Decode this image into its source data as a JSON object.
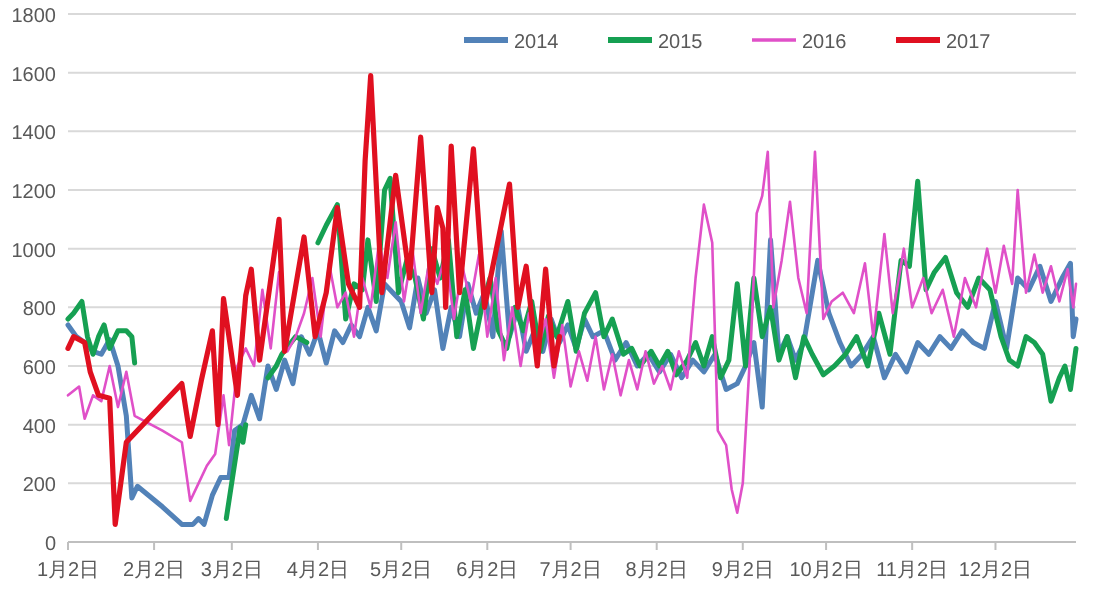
{
  "chart_data": {
    "type": "line",
    "xlim": [
      "--01-02",
      "--12-31"
    ],
    "xticks": [
      {
        "value": "--01-02",
        "label": "1月2日"
      },
      {
        "value": "--02-02",
        "label": "2月2日"
      },
      {
        "value": "--03-02",
        "label": "3月2日"
      },
      {
        "value": "--04-02",
        "label": "4月2日"
      },
      {
        "value": "--05-02",
        "label": "5月2日"
      },
      {
        "value": "--06-02",
        "label": "6月2日"
      },
      {
        "value": "--07-02",
        "label": "7月2日"
      },
      {
        "value": "--08-02",
        "label": "8月2日"
      },
      {
        "value": "--09-02",
        "label": "9月2日"
      },
      {
        "value": "--10-02",
        "label": "10月2日"
      },
      {
        "value": "--11-02",
        "label": "11月2日"
      },
      {
        "value": "--12-02",
        "label": "12月2日"
      }
    ],
    "ylim": [
      0,
      1800
    ],
    "yticks": [
      0,
      200,
      400,
      600,
      800,
      1000,
      1200,
      1400,
      1600,
      1800
    ],
    "grid": "y",
    "legend": "top",
    "line_style": "solid",
    "series": [
      {
        "name": "2014",
        "color": "#5282b8",
        "x": [
          "--01-02",
          "--01-05",
          "--01-08",
          "--01-11",
          "--01-14",
          "--01-17",
          "--01-20",
          "--01-23",
          "--01-25",
          "--01-27",
          "--02-05",
          "--02-12",
          "--02-16",
          "--02-18",
          "--02-20",
          "--02-23",
          "--02-26",
          "--03-01",
          "--03-03",
          "--03-06",
          "--03-09",
          "--03-12",
          "--03-15",
          "--03-18",
          "--03-21",
          "--03-24",
          "--03-27",
          "--03-30",
          "--04-02",
          "--04-05",
          "--04-08",
          "--04-11",
          "--04-14",
          "--04-17",
          "--04-20",
          "--04-23",
          "--04-26",
          "--04-29",
          "--05-02",
          "--05-05",
          "--05-08",
          "--05-11",
          "--05-14",
          "--05-17",
          "--05-20",
          "--05-23",
          "--05-26",
          "--05-29",
          "--06-01",
          "--06-04",
          "--06-07",
          "--06-10",
          "--06-13",
          "--06-16",
          "--06-19",
          "--06-22",
          "--06-25",
          "--06-28",
          "--07-01",
          "--07-04",
          "--07-07",
          "--07-10",
          "--07-14",
          "--07-18",
          "--07-22",
          "--07-26",
          "--07-30",
          "--08-03",
          "--08-07",
          "--08-11",
          "--08-15",
          "--08-19",
          "--08-23",
          "--08-27",
          "--08-31",
          "--09-03",
          "--09-06",
          "--09-09",
          "--09-12",
          "--09-15",
          "--09-18",
          "--09-21",
          "--09-24",
          "--09-29",
          "--10-03",
          "--10-07",
          "--10-11",
          "--10-15",
          "--10-19",
          "--10-23",
          "--10-27",
          "--10-31",
          "--11-04",
          "--11-08",
          "--11-12",
          "--11-16",
          "--11-20",
          "--11-24",
          "--11-28",
          "--12-02",
          "--12-06",
          "--12-10",
          "--12-14",
          "--12-18",
          "--12-22",
          "--12-26",
          "--12-29",
          "--12-30",
          "--12-31"
        ],
        "values": [
          740,
          700,
          680,
          650,
          640,
          690,
          600,
          430,
          150,
          190,
          120,
          60,
          60,
          80,
          60,
          160,
          220,
          220,
          380,
          400,
          500,
          420,
          600,
          520,
          620,
          540,
          700,
          640,
          720,
          610,
          720,
          680,
          740,
          700,
          800,
          720,
          880,
          850,
          820,
          730,
          900,
          780,
          860,
          660,
          800,
          700,
          880,
          780,
          850,
          700,
          1060,
          700,
          800,
          650,
          720,
          650,
          760,
          680,
          740,
          660,
          760,
          700,
          720,
          620,
          680,
          600,
          640,
          580,
          640,
          560,
          620,
          580,
          640,
          520,
          540,
          600,
          680,
          460,
          1030,
          640,
          700,
          620,
          680,
          960,
          780,
          680,
          600,
          640,
          700,
          560,
          640,
          580,
          680,
          640,
          700,
          660,
          720,
          680,
          660,
          820,
          660,
          900,
          860,
          940,
          820,
          900,
          950,
          700,
          760
        ]
      },
      {
        "name": "2015",
        "color": "#16a052",
        "x": [
          "--01-02",
          "--01-04",
          "--01-07",
          "--01-09",
          "--01-11",
          "--01-13",
          "--01-15",
          "--01-17",
          "--01-20",
          "--01-23",
          "--01-25",
          "--01-26",
          "--02-10",
          "--02-28",
          "--03-05",
          "--03-06",
          "--03-07",
          "--03-11",
          "--03-15",
          "--03-18",
          "--03-20",
          "--03-25",
          "--03-29",
          "--03-31",
          "--04-02",
          "--04-05",
          "--04-09",
          "--04-12",
          "--04-15",
          "--04-18",
          "--04-20",
          "--04-23",
          "--04-26",
          "--04-28",
          "--05-01",
          "--05-04",
          "--05-07",
          "--05-10",
          "--05-13",
          "--05-16",
          "--05-19",
          "--05-22",
          "--05-25",
          "--05-28",
          "--05-31",
          "--06-03",
          "--06-06",
          "--06-09",
          "--06-12",
          "--06-15",
          "--06-18",
          "--06-21",
          "--06-24",
          "--06-27",
          "--07-01",
          "--07-04",
          "--07-07",
          "--07-11",
          "--07-14",
          "--07-17",
          "--07-21",
          "--07-24",
          "--07-27",
          "--07-31",
          "--08-03",
          "--08-06",
          "--08-09",
          "--08-13",
          "--08-16",
          "--08-19",
          "--08-22",
          "--08-25",
          "--08-28",
          "--08-31",
          "--09-03",
          "--09-06",
          "--09-09",
          "--09-12",
          "--09-15",
          "--09-18",
          "--09-21",
          "--09-24",
          "--09-27",
          "--10-01",
          "--10-05",
          "--10-09",
          "--10-13",
          "--10-17",
          "--10-21",
          "--10-25",
          "--10-29",
          "--11-01",
          "--11-04",
          "--11-07",
          "--11-10",
          "--11-14",
          "--11-18",
          "--11-22",
          "--11-26",
          "--11-30",
          "--12-04",
          "--12-07",
          "--12-10",
          "--12-13",
          "--12-16",
          "--12-19",
          "--12-22",
          "--12-25",
          "--12-27",
          "--12-29",
          "--12-31"
        ],
        "values": [
          760,
          780,
          820,
          700,
          640,
          700,
          740,
          660,
          720,
          720,
          700,
          610,
          null,
          80,
          390,
          340,
          400,
          null,
          560,
          600,
          640,
          700,
          680,
          null,
          1020,
          1080,
          1150,
          760,
          880,
          860,
          1030,
          820,
          1200,
          1240,
          850,
          960,
          900,
          760,
          1000,
          900,
          1030,
          700,
          860,
          660,
          800,
          900,
          720,
          660,
          800,
          720,
          820,
          650,
          770,
          700,
          820,
          650,
          780,
          850,
          700,
          760,
          640,
          660,
          600,
          650,
          600,
          650,
          570,
          620,
          680,
          600,
          700,
          560,
          620,
          880,
          600,
          900,
          700,
          800,
          620,
          700,
          560,
          700,
          640,
          570,
          600,
          640,
          700,
          600,
          780,
          640,
          960,
          940,
          1230,
          860,
          920,
          970,
          850,
          800,
          900,
          860,
          700,
          620,
          600,
          700,
          680,
          640,
          480,
          560,
          600,
          520,
          660
        ]
      },
      {
        "name": "2016",
        "color": "#e050c8",
        "x": [
          "--01-02",
          "--01-06",
          "--01-08",
          "--01-11",
          "--01-14",
          "--01-17",
          "--01-20",
          "--01-23",
          "--01-26",
          "--02-05",
          "--02-12",
          "--02-15",
          "--02-18",
          "--02-21",
          "--02-24",
          "--02-27",
          "--03-01",
          "--03-04",
          "--03-07",
          "--03-10",
          "--03-13",
          "--03-16",
          "--03-19",
          "--03-22",
          "--03-25",
          "--03-28",
          "--03-31",
          "--04-03",
          "--04-06",
          "--04-09",
          "--04-12",
          "--04-15",
          "--04-18",
          "--04-21",
          "--04-24",
          "--04-27",
          "--04-30",
          "--05-03",
          "--05-06",
          "--05-09",
          "--05-12",
          "--05-15",
          "--05-18",
          "--05-21",
          "--05-24",
          "--05-27",
          "--05-30",
          "--06-02",
          "--06-05",
          "--06-08",
          "--06-11",
          "--06-14",
          "--06-17",
          "--06-20",
          "--06-23",
          "--06-26",
          "--06-29",
          "--07-02",
          "--07-05",
          "--07-08",
          "--07-11",
          "--07-14",
          "--07-17",
          "--07-20",
          "--07-23",
          "--07-26",
          "--07-29",
          "--08-01",
          "--08-04",
          "--08-07",
          "--08-10",
          "--08-13",
          "--08-16",
          "--08-19",
          "--08-22",
          "--08-24",
          "--08-27",
          "--08-29",
          "--08-31",
          "--09-02",
          "--09-05",
          "--09-07",
          "--09-09",
          "--09-11",
          "--09-13",
          "--09-16",
          "--09-19",
          "--09-22",
          "--09-25",
          "--09-28",
          "--10-01",
          "--10-04",
          "--10-08",
          "--10-12",
          "--10-16",
          "--10-19",
          "--10-23",
          "--10-26",
          "--10-30",
          "--11-02",
          "--11-06",
          "--11-09",
          "--11-13",
          "--11-17",
          "--11-21",
          "--11-25",
          "--11-29",
          "--12-02",
          "--12-05",
          "--12-08",
          "--12-10",
          "--12-13",
          "--12-16",
          "--12-19",
          "--12-22",
          "--12-25",
          "--12-28",
          "--12-30",
          "--12-31"
        ],
        "values": [
          500,
          530,
          420,
          500,
          480,
          600,
          460,
          580,
          430,
          380,
          340,
          140,
          200,
          260,
          300,
          500,
          330,
          600,
          660,
          600,
          860,
          660,
          920,
          650,
          700,
          780,
          900,
          700,
          950,
          800,
          850,
          700,
          900,
          800,
          1020,
          900,
          1090,
          820,
          1000,
          780,
          950,
          880,
          980,
          760,
          940,
          820,
          980,
          700,
          900,
          620,
          800,
          600,
          780,
          650,
          760,
          560,
          740,
          530,
          650,
          550,
          700,
          520,
          640,
          500,
          620,
          520,
          650,
          540,
          600,
          520,
          650,
          560,
          900,
          1150,
          1020,
          380,
          330,
          180,
          100,
          200,
          700,
          1120,
          1180,
          1330,
          800,
          960,
          1160,
          900,
          780,
          1330,
          760,
          820,
          850,
          780,
          950,
          700,
          1050,
          780,
          1000,
          800,
          900,
          780,
          860,
          700,
          900,
          800,
          1000,
          850,
          1010,
          880,
          1200,
          850,
          980,
          850,
          940,
          820,
          930,
          800,
          880
        ]
      },
      {
        "name": "2017",
        "color": "#e01020",
        "x": [
          "--01-02",
          "--01-04",
          "--01-08",
          "--01-10",
          "--01-13",
          "--01-17",
          "--01-19",
          "--01-23",
          "--02-12",
          "--02-15",
          "--02-19",
          "--02-23",
          "--02-25",
          "--02-27",
          "--03-04",
          "--03-07",
          "--03-09",
          "--03-12",
          "--03-19",
          "--03-21",
          "--03-28",
          "--04-01",
          "--04-05",
          "--04-09",
          "--04-13",
          "--04-17",
          "--04-19",
          "--04-21",
          "--04-25",
          "--04-30",
          "--05-05",
          "--05-09",
          "--05-13",
          "--05-15",
          "--05-17",
          "--05-18",
          "--05-20",
          "--05-23",
          "--05-28",
          "--06-01",
          "--06-10",
          "--06-13",
          "--06-16",
          "--06-20",
          "--06-23",
          "--06-26",
          "--06-28"
        ],
        "values": [
          660,
          700,
          680,
          580,
          500,
          490,
          60,
          340,
          540,
          360,
          550,
          720,
          400,
          830,
          500,
          840,
          930,
          620,
          1100,
          650,
          1040,
          700,
          850,
          1140,
          880,
          800,
          1300,
          1590,
          850,
          1250,
          900,
          1380,
          850,
          1140,
          1070,
          800,
          1350,
          850,
          1340,
          800,
          1220,
          800,
          940,
          600,
          930,
          600,
          700
        ]
      }
    ]
  }
}
